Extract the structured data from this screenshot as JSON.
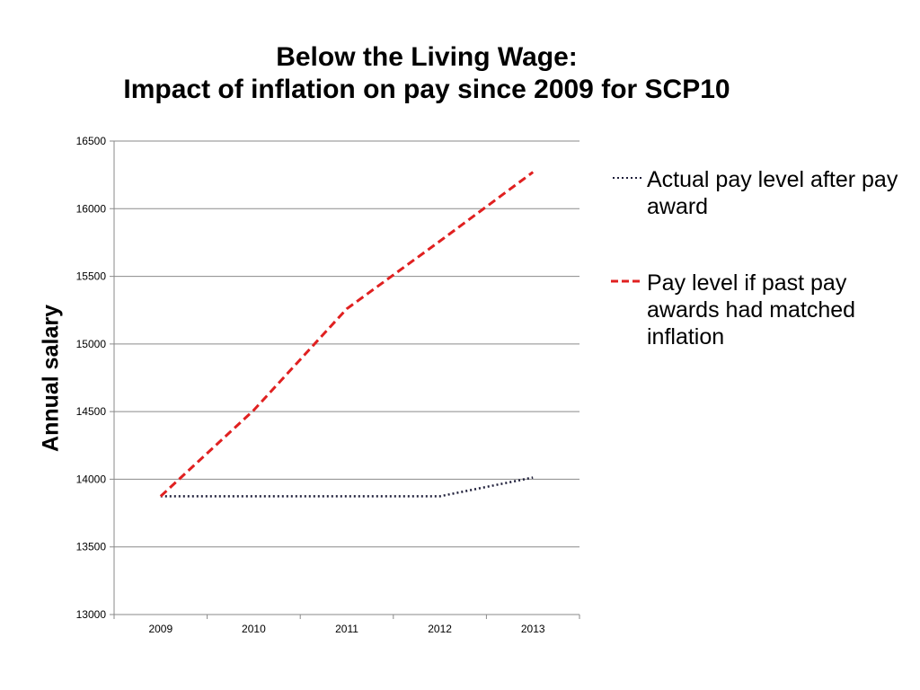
{
  "chart_data": {
    "type": "line",
    "title_lines": [
      "Below the Living Wage:",
      "Impact of inflation on pay since 2009 for SCP10"
    ],
    "xlabel": "",
    "ylabel": "Annual salary",
    "categories": [
      "2009",
      "2010",
      "2011",
      "2012",
      "2013"
    ],
    "ylim": [
      13000,
      16500
    ],
    "yticks": [
      "13000",
      "13500",
      "14000",
      "14500",
      "15000",
      "15500",
      "16000",
      "16500"
    ],
    "grid": true,
    "legend_position": "right",
    "series": [
      {
        "name": "Actual pay level after pay award",
        "values": [
          13874,
          13874,
          13874,
          13874,
          14013
        ],
        "color": "#1f1f3a",
        "style": "dotted"
      },
      {
        "name": "Pay level if past pay awards had matched inflation",
        "values": [
          13874,
          14510,
          15260,
          15760,
          16270
        ],
        "color": "#e02020",
        "style": "dashed"
      }
    ]
  }
}
